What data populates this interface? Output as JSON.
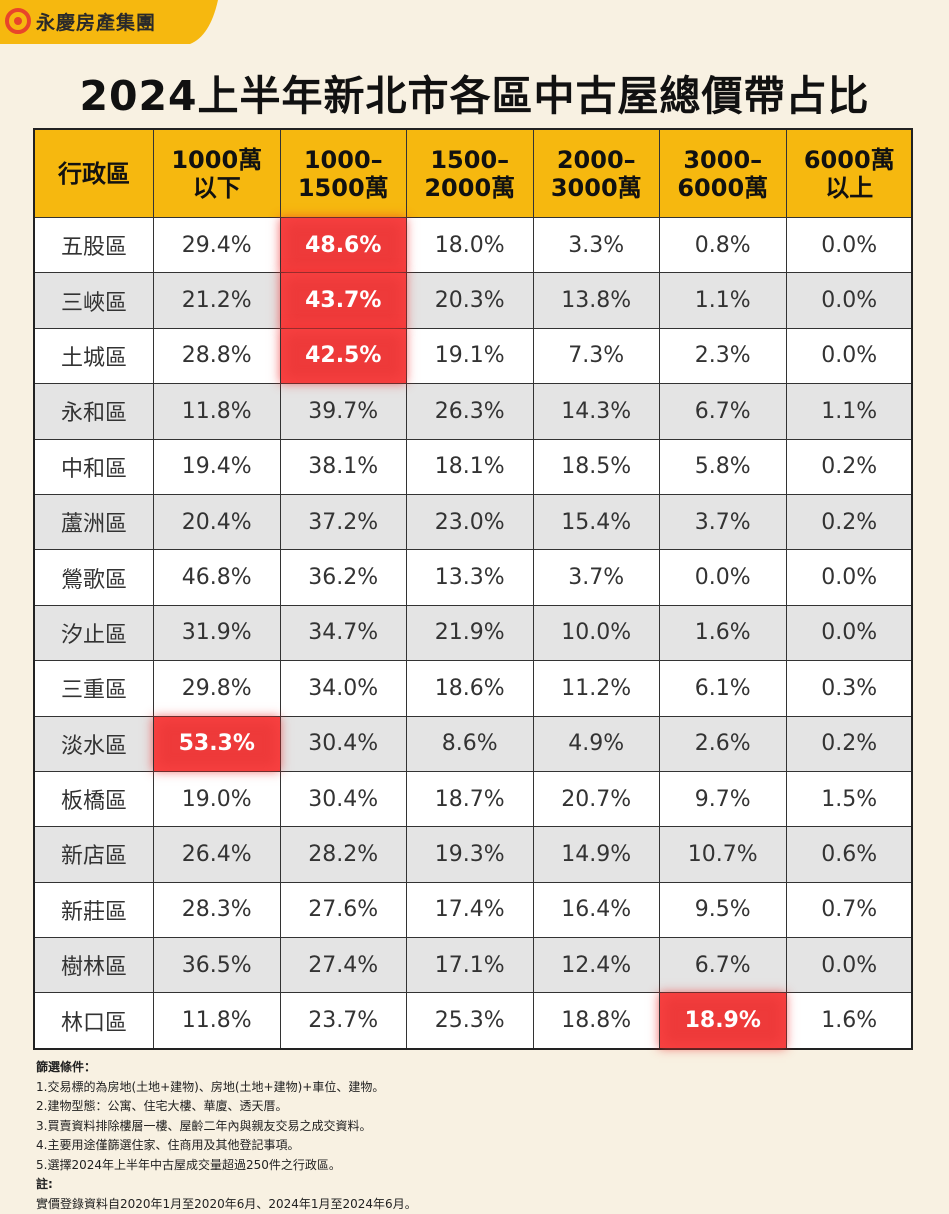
{
  "header": {
    "brand": "永慶房產集團",
    "title": "2024上半年新北市各區中古屋總價帶占比"
  },
  "table": {
    "header": [
      [
        "行政區"
      ],
      [
        "1000萬",
        "以下"
      ],
      [
        "1000–",
        "1500萬"
      ],
      [
        "1500–",
        "2000萬"
      ],
      [
        "2000–",
        "3000萬"
      ],
      [
        "3000–",
        "6000萬"
      ],
      [
        "6000萬",
        "以上"
      ]
    ],
    "rows": [
      [
        "五股區",
        "29.4%",
        "48.6%",
        "18.0%",
        "3.3%",
        "0.8%",
        "0.0%"
      ],
      [
        "三峽區",
        "21.2%",
        "43.7%",
        "20.3%",
        "13.8%",
        "1.1%",
        "0.0%"
      ],
      [
        "土城區",
        "28.8%",
        "42.5%",
        "19.1%",
        "7.3%",
        "2.3%",
        "0.0%"
      ],
      [
        "永和區",
        "11.8%",
        "39.7%",
        "26.3%",
        "14.3%",
        "6.7%",
        "1.1%"
      ],
      [
        "中和區",
        "19.4%",
        "38.1%",
        "18.1%",
        "18.5%",
        "5.8%",
        "0.2%"
      ],
      [
        "蘆洲區",
        "20.4%",
        "37.2%",
        "23.0%",
        "15.4%",
        "3.7%",
        "0.2%"
      ],
      [
        "鶯歌區",
        "46.8%",
        "36.2%",
        "13.3%",
        "3.7%",
        "0.0%",
        "0.0%"
      ],
      [
        "汐止區",
        "31.9%",
        "34.7%",
        "21.9%",
        "10.0%",
        "1.6%",
        "0.0%"
      ],
      [
        "三重區",
        "29.8%",
        "34.0%",
        "18.6%",
        "11.2%",
        "6.1%",
        "0.3%"
      ],
      [
        "淡水區",
        "53.3%",
        "30.4%",
        "8.6%",
        "4.9%",
        "2.6%",
        "0.2%"
      ],
      [
        "板橋區",
        "19.0%",
        "30.4%",
        "18.7%",
        "20.7%",
        "9.7%",
        "1.5%"
      ],
      [
        "新店區",
        "26.4%",
        "28.2%",
        "19.3%",
        "14.9%",
        "10.7%",
        "0.6%"
      ],
      [
        "新莊區",
        "28.3%",
        "27.6%",
        "17.4%",
        "16.4%",
        "9.5%",
        "0.7%"
      ],
      [
        "樹林區",
        "36.5%",
        "27.4%",
        "17.1%",
        "12.4%",
        "6.7%",
        "0.0%"
      ],
      [
        "林口區",
        "11.8%",
        "23.7%",
        "25.3%",
        "18.8%",
        "18.9%",
        "1.6%"
      ]
    ],
    "highlighted": [
      [
        0,
        2
      ],
      [
        1,
        2
      ],
      [
        2,
        2
      ],
      [
        9,
        1
      ],
      [
        14,
        5
      ]
    ]
  },
  "notes": {
    "filter_title": "篩選條件：",
    "filters": [
      "1.交易標的為房地(土地+建物)、房地(土地+建物)+車位、建物。",
      "2.建物型態：公寓、住宅大樓、華廈、透天厝。",
      "3.買賣資料排除樓層一樓、屋齡二年內與親友交易之成交資料。",
      "4.主要用途僅篩選住家、住商用及其他登記事項。",
      "5.選擇2024年上半年中古屋成交量超過250件之行政區。"
    ],
    "remark_title": "註:",
    "remarks": [
      "實價登錄資料自2020年1月至2020年6月、2024年1月至2024年6月。"
    ]
  }
}
